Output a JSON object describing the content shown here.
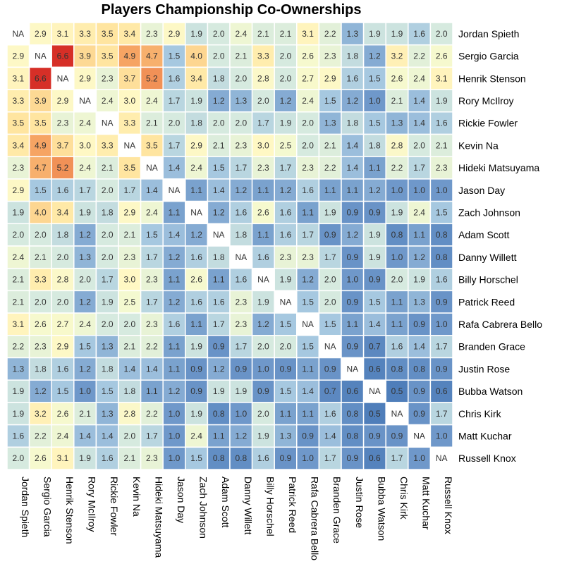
{
  "chart_data": {
    "type": "heatmap",
    "title": "Players Championship Co-Ownerships",
    "players": [
      "Jordan Spieth",
      "Sergio Garcia",
      "Henrik Stenson",
      "Rory McIlroy",
      "Rickie Fowler",
      "Kevin Na",
      "Hideki Matsuyama",
      "Jason Day",
      "Zach Johnson",
      "Adam Scott",
      "Danny Willett",
      "Billy Horschel",
      "Patrick Reed",
      "Rafa Cabrera Bello",
      "Branden Grace",
      "Justin Rose",
      "Bubba Watson",
      "Chris Kirk",
      "Matt Kuchar",
      "Russell Knox"
    ],
    "missing_label": "NA",
    "values": [
      [
        null,
        2.9,
        3.1,
        3.3,
        3.5,
        3.4,
        2.3,
        2.9,
        1.9,
        2.0,
        2.4,
        2.1,
        2.1,
        3.1,
        2.2,
        1.3,
        1.9,
        1.9,
        1.6,
        2.0
      ],
      [
        2.9,
        null,
        6.6,
        3.9,
        3.5,
        4.9,
        4.7,
        1.5,
        4.0,
        2.0,
        2.1,
        3.3,
        2.0,
        2.6,
        2.3,
        1.8,
        1.2,
        3.2,
        2.2,
        2.6
      ],
      [
        3.1,
        6.6,
        null,
        2.9,
        2.3,
        3.7,
        5.2,
        1.6,
        3.4,
        1.8,
        2.0,
        2.8,
        2.0,
        2.7,
        2.9,
        1.6,
        1.5,
        2.6,
        2.4,
        3.1
      ],
      [
        3.3,
        3.9,
        2.9,
        null,
        2.4,
        3.0,
        2.4,
        1.7,
        1.9,
        1.2,
        1.3,
        2.0,
        1.2,
        2.4,
        1.5,
        1.2,
        1.0,
        2.1,
        1.4,
        1.9
      ],
      [
        3.5,
        3.5,
        2.3,
        2.4,
        null,
        3.3,
        2.1,
        2.0,
        1.8,
        2.0,
        2.0,
        1.7,
        1.9,
        2.0,
        1.3,
        1.8,
        1.5,
        1.3,
        1.4,
        1.6
      ],
      [
        3.4,
        4.9,
        3.7,
        3.0,
        3.3,
        null,
        3.5,
        1.7,
        2.9,
        2.1,
        2.3,
        3.0,
        2.5,
        2.0,
        2.1,
        1.4,
        1.8,
        2.8,
        2.0,
        2.1
      ],
      [
        2.3,
        4.7,
        5.2,
        2.4,
        2.1,
        3.5,
        null,
        1.4,
        2.4,
        1.5,
        1.7,
        2.3,
        1.7,
        2.3,
        2.2,
        1.4,
        1.1,
        2.2,
        1.7,
        2.3
      ],
      [
        2.9,
        1.5,
        1.6,
        1.7,
        2.0,
        1.7,
        1.4,
        null,
        1.1,
        1.4,
        1.2,
        1.1,
        1.2,
        1.6,
        1.1,
        1.1,
        1.2,
        1.0,
        1.0,
        1.0
      ],
      [
        1.9,
        4.0,
        3.4,
        1.9,
        1.8,
        2.9,
        2.4,
        1.1,
        null,
        1.2,
        1.6,
        2.6,
        1.6,
        1.1,
        1.9,
        0.9,
        0.9,
        1.9,
        2.4,
        1.5
      ],
      [
        2.0,
        2.0,
        1.8,
        1.2,
        2.0,
        2.1,
        1.5,
        1.4,
        1.2,
        null,
        1.8,
        1.1,
        1.6,
        1.7,
        0.9,
        1.2,
        1.9,
        0.8,
        1.1,
        0.8
      ],
      [
        2.4,
        2.1,
        2.0,
        1.3,
        2.0,
        2.3,
        1.7,
        1.2,
        1.6,
        1.8,
        null,
        1.6,
        2.3,
        2.3,
        1.7,
        0.9,
        1.9,
        1.0,
        1.2,
        0.8
      ],
      [
        2.1,
        3.3,
        2.8,
        2.0,
        1.7,
        3.0,
        2.3,
        1.1,
        2.6,
        1.1,
        1.6,
        null,
        1.9,
        1.2,
        2.0,
        1.0,
        0.9,
        2.0,
        1.9,
        1.6
      ],
      [
        2.1,
        2.0,
        2.0,
        1.2,
        1.9,
        2.5,
        1.7,
        1.2,
        1.6,
        1.6,
        2.3,
        1.9,
        null,
        1.5,
        2.0,
        0.9,
        1.5,
        1.1,
        1.3,
        0.9
      ],
      [
        3.1,
        2.6,
        2.7,
        2.4,
        2.0,
        2.0,
        2.3,
        1.6,
        1.1,
        1.7,
        2.3,
        1.2,
        1.5,
        null,
        1.5,
        1.1,
        1.4,
        1.1,
        0.9,
        1.0
      ],
      [
        2.2,
        2.3,
        2.9,
        1.5,
        1.3,
        2.1,
        2.2,
        1.1,
        1.9,
        0.9,
        1.7,
        2.0,
        2.0,
        1.5,
        null,
        0.9,
        0.7,
        1.6,
        1.4,
        1.7
      ],
      [
        1.3,
        1.8,
        1.6,
        1.2,
        1.8,
        1.4,
        1.4,
        1.1,
        0.9,
        1.2,
        0.9,
        1.0,
        0.9,
        1.1,
        0.9,
        null,
        0.6,
        0.8,
        0.8,
        0.9
      ],
      [
        1.9,
        1.2,
        1.5,
        1.0,
        1.5,
        1.8,
        1.1,
        1.2,
        0.9,
        1.9,
        1.9,
        0.9,
        1.5,
        1.4,
        0.7,
        0.6,
        null,
        0.5,
        0.9,
        0.6
      ],
      [
        1.9,
        3.2,
        2.6,
        2.1,
        1.3,
        2.8,
        2.2,
        1.0,
        1.9,
        0.8,
        1.0,
        2.0,
        1.1,
        1.1,
        1.6,
        0.8,
        0.5,
        null,
        0.9,
        1.7
      ],
      [
        1.6,
        2.2,
        2.4,
        1.4,
        1.4,
        2.0,
        1.7,
        1.0,
        2.4,
        1.1,
        1.2,
        1.9,
        1.3,
        0.9,
        1.4,
        0.8,
        0.9,
        0.9,
        null,
        1.0
      ],
      [
        2.0,
        2.6,
        3.1,
        1.9,
        1.6,
        2.1,
        2.3,
        1.0,
        1.5,
        0.8,
        0.8,
        1.6,
        0.9,
        1.0,
        1.7,
        0.9,
        0.6,
        1.7,
        1.0,
        null
      ]
    ],
    "color_scale": {
      "stops": [
        {
          "value": 0.5,
          "color": "#4F7EBA"
        },
        {
          "value": 1.0,
          "color": "#6F98CA"
        },
        {
          "value": 1.5,
          "color": "#A6C8E0"
        },
        {
          "value": 2.0,
          "color": "#D6EADF"
        },
        {
          "value": 2.5,
          "color": "#F4F9D0"
        },
        {
          "value": 3.0,
          "color": "#FFF8C4"
        },
        {
          "value": 3.5,
          "color": "#FFE5A0"
        },
        {
          "value": 4.0,
          "color": "#FDD691"
        },
        {
          "value": 5.0,
          "color": "#F59F5E"
        },
        {
          "value": 6.6,
          "color": "#D62F27"
        }
      ],
      "missing_color": "#FFFFFF"
    }
  }
}
